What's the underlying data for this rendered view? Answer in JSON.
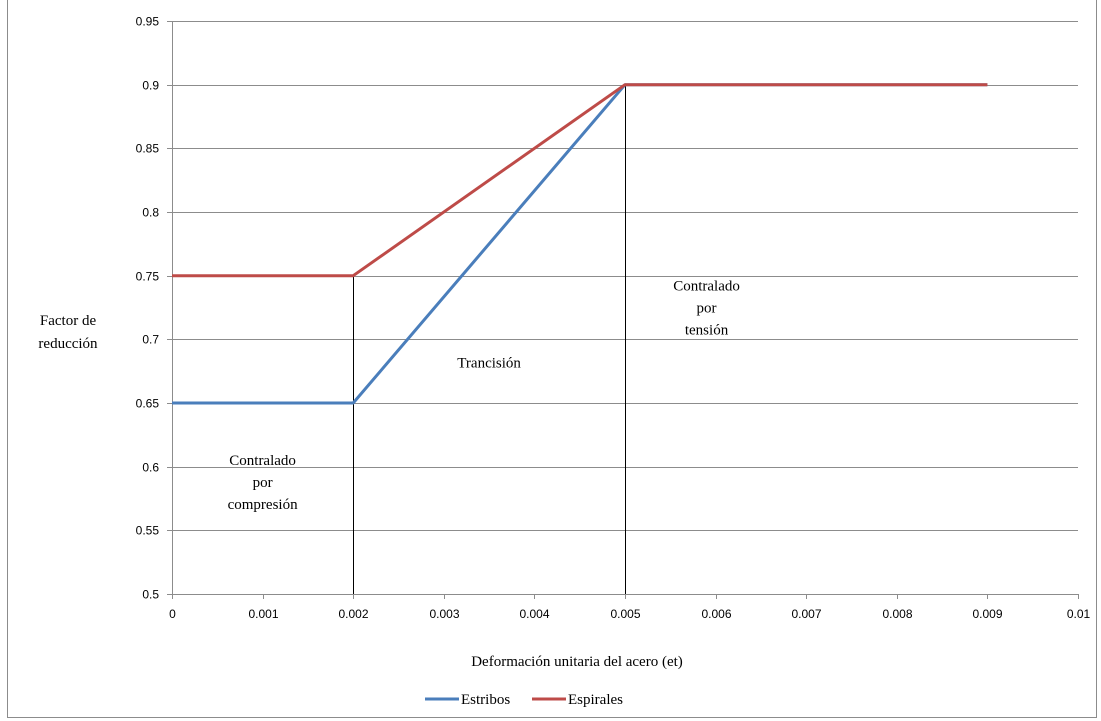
{
  "chart_data": {
    "type": "line",
    "title": "",
    "xlabel": "Deformación unitaria del acero (et)",
    "ylabel_lines": [
      "Factor de",
      "reducción"
    ],
    "xlim": [
      0,
      0.01
    ],
    "ylim": [
      0.5,
      0.95
    ],
    "x_ticks": [
      0,
      0.001,
      0.002,
      0.003,
      0.004,
      0.005,
      0.006,
      0.007,
      0.008,
      0.009,
      0.01
    ],
    "x_tick_labels": [
      "0",
      "0.001",
      "0.002",
      "0.003",
      "0.004",
      "0.005",
      "0.006",
      "0.007",
      "0.008",
      "0.009",
      "0.01"
    ],
    "y_ticks": [
      0.5,
      0.55,
      0.6,
      0.65,
      0.7,
      0.75,
      0.8,
      0.85,
      0.9,
      0.95
    ],
    "y_tick_labels": [
      "0.5",
      "0.55",
      "0.6",
      "0.65",
      "0.7",
      "0.75",
      "0.8",
      "0.85",
      "0.9",
      "0.95"
    ],
    "grid": "horizontal",
    "legend_position": "bottom",
    "series": [
      {
        "name": "Estribos",
        "color": "#4a7ebb",
        "x": [
          0,
          0.002,
          0.005,
          0.009
        ],
        "y": [
          0.65,
          0.65,
          0.9,
          0.9
        ]
      },
      {
        "name": "Espirales",
        "color": "#be4b48",
        "x": [
          0,
          0.002,
          0.005,
          0.009
        ],
        "y": [
          0.75,
          0.75,
          0.9,
          0.9
        ]
      }
    ],
    "vertical_lines": [
      {
        "x": 0.002,
        "y_top": 0.75
      },
      {
        "x": 0.005,
        "y_top": 0.9
      }
    ],
    "annotations": [
      {
        "lines": [
          "Contralado",
          "por",
          "compresión"
        ],
        "x": 0.001,
        "y": 0.588
      },
      {
        "lines": [
          "Trancisión"
        ],
        "x": 0.0035,
        "y": 0.682
      },
      {
        "lines": [
          "Contralado",
          "por",
          "tensión"
        ],
        "x": 0.0059,
        "y": 0.725
      }
    ]
  }
}
